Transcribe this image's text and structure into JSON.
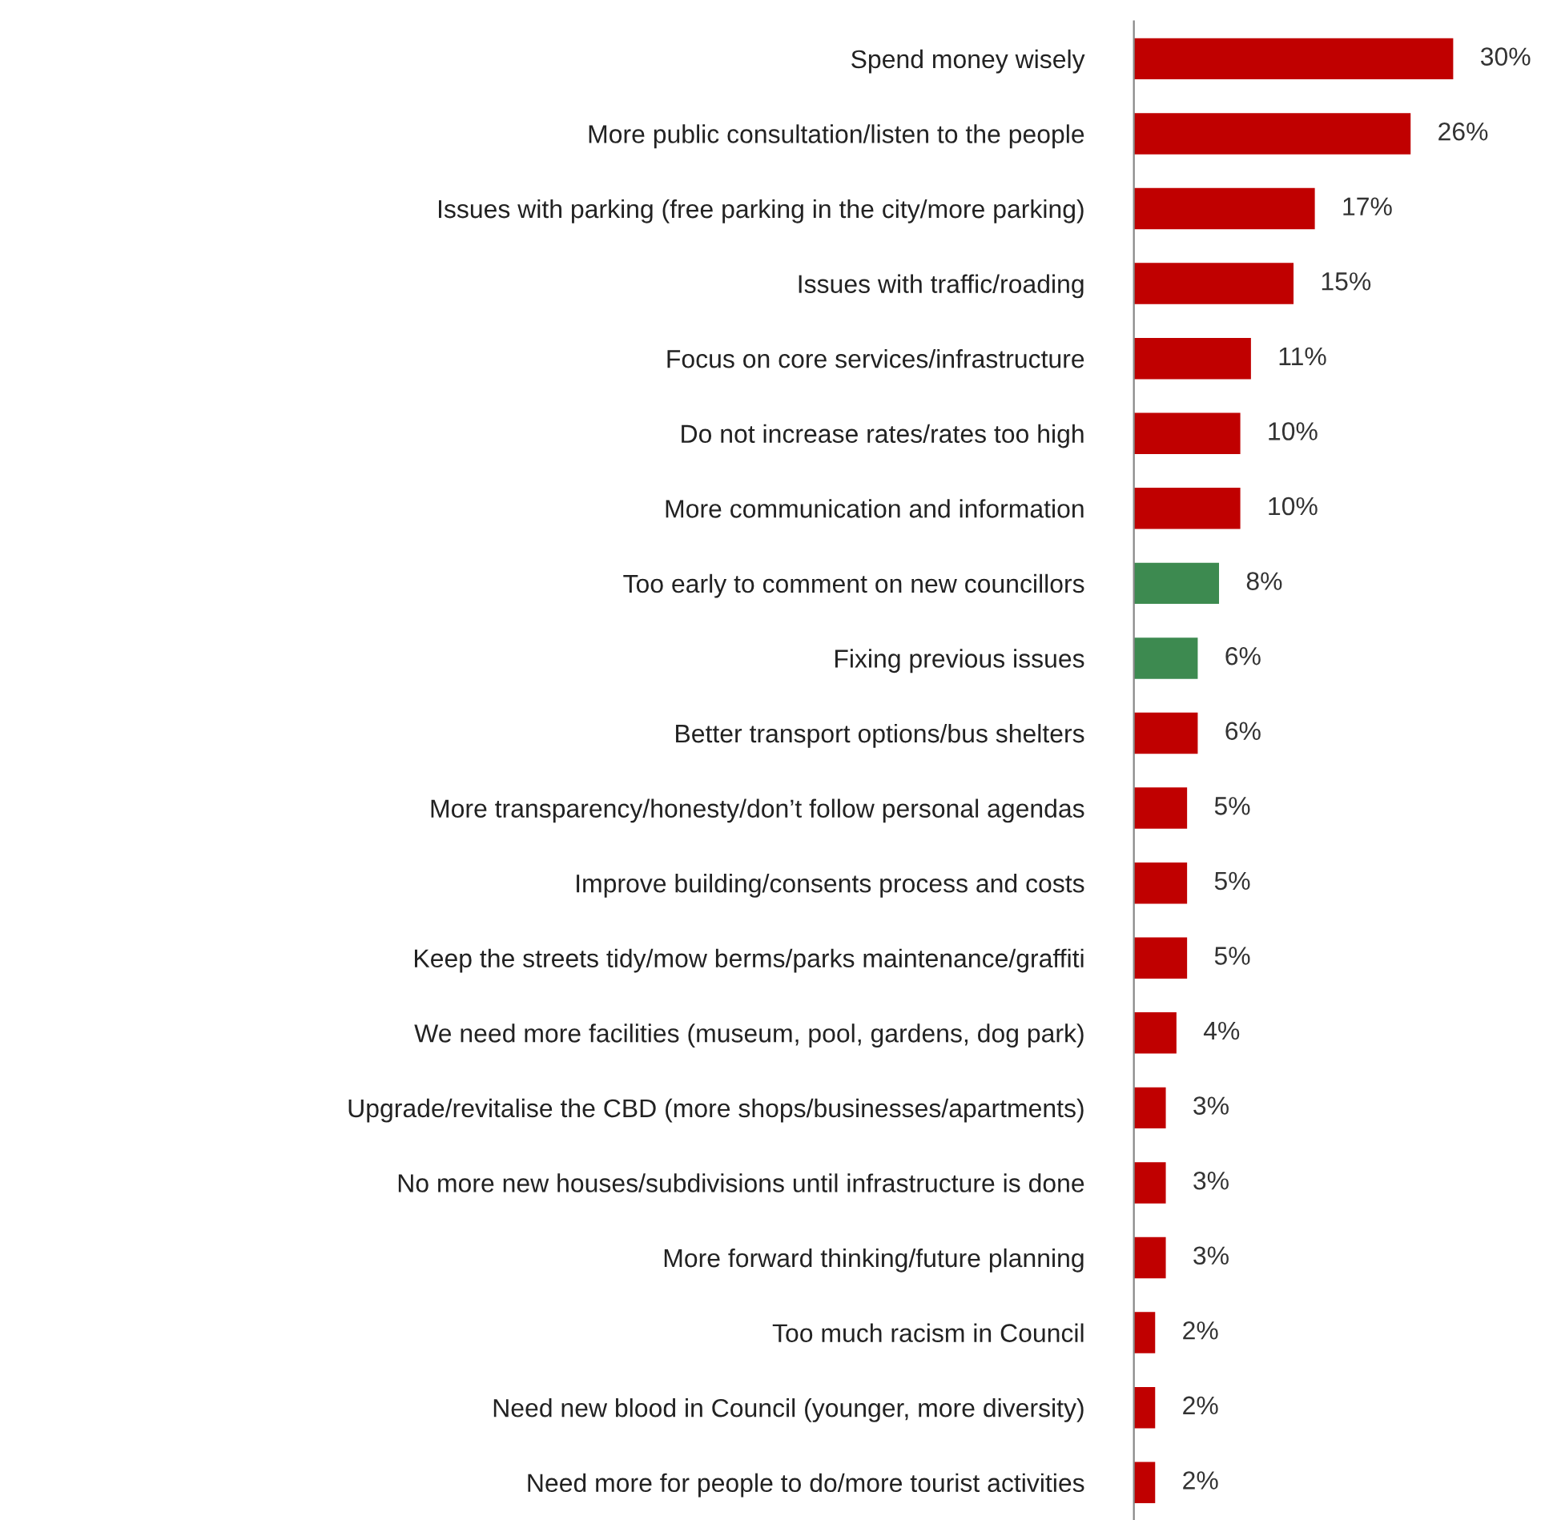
{
  "chart_data": {
    "type": "bar",
    "orientation": "horizontal",
    "categories": [
      "Spend money wisely",
      "More public consultation/listen to the people",
      "Issues with parking (free parking in the city/more parking)",
      "Issues with traffic/roading",
      "Focus on core services/infrastructure",
      "Do not increase rates/rates too high",
      "More communication and information",
      "Too early to comment on new councillors",
      "Fixing previous issues",
      "Better transport options/bus shelters",
      "More transparency/honesty/don’t follow personal agendas",
      "Improve building/consents process and costs",
      "Keep the streets tidy/mow berms/parks maintenance/graffiti",
      "We need more facilities (museum, pool, gardens, dog park)",
      "Upgrade/revitalise the CBD (more shops/businesses/apartments)",
      "No more new houses/subdivisions until infrastructure is done",
      "More forward thinking/future planning",
      "Too much racism in Council",
      "Need new blood in Council (younger, more diversity)",
      "Need more for people to do/more tourist activities"
    ],
    "values": [
      30,
      26,
      17,
      15,
      11,
      10,
      10,
      8,
      6,
      6,
      5,
      5,
      5,
      4,
      3,
      3,
      3,
      2,
      2,
      2
    ],
    "value_labels": [
      "30%",
      "26%",
      "17%",
      "15%",
      "11%",
      "10%",
      "10%",
      "8%",
      "6%",
      "6%",
      "5%",
      "5%",
      "5%",
      "4%",
      "3%",
      "3%",
      "3%",
      "2%",
      "2%",
      "2%"
    ],
    "colors": [
      "#c00000",
      "#c00000",
      "#c00000",
      "#c00000",
      "#c00000",
      "#c00000",
      "#c00000",
      "#3d8a50",
      "#3d8a50",
      "#c00000",
      "#c00000",
      "#c00000",
      "#c00000",
      "#c00000",
      "#c00000",
      "#c00000",
      "#c00000",
      "#c00000",
      "#c00000",
      "#c00000"
    ],
    "grid": false,
    "legend": false
  }
}
